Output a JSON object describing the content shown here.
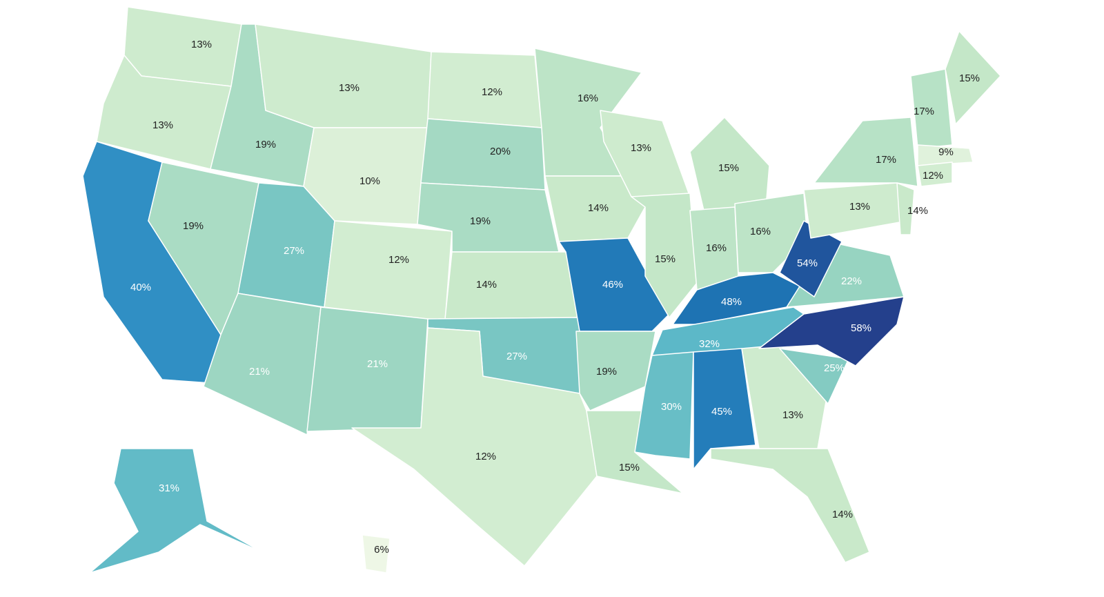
{
  "chart_data": {
    "type": "choropleth",
    "values": [
      13,
      13,
      40,
      19,
      19,
      13,
      10,
      27,
      21,
      12,
      21,
      12,
      20,
      19,
      14,
      27,
      12,
      16,
      14,
      46,
      19,
      15,
      13,
      15,
      15,
      16,
      16,
      48,
      32,
      30,
      45,
      13,
      14,
      25,
      58,
      22,
      54,
      13,
      17,
      14,
      17,
      15,
      9,
      12,
      31,
      6
    ],
    "value_labels": [
      "13%",
      "13%",
      "40%",
      "19%",
      "19%",
      "13%",
      "10%",
      "27%",
      "21%",
      "12%",
      "21%",
      "12%",
      "20%",
      "19%",
      "14%",
      "27%",
      "12%",
      "16%",
      "14%",
      "46%",
      "19%",
      "15%",
      "13%",
      "15%",
      "15%",
      "16%",
      "16%",
      "48%",
      "32%",
      "30%",
      "45%",
      "13%",
      "14%",
      "25%",
      "58%",
      "22%",
      "54%",
      "13%",
      "17%",
      "14%",
      "17%",
      "15%",
      "9%",
      "12%",
      "31%",
      "6%"
    ],
    "color_scale": [
      "#eef7e6",
      "#c6e8c8",
      "#8ed0c0",
      "#5cb8c8",
      "#2c8cc4",
      "#1c6eb0",
      "#24408c"
    ]
  }
}
